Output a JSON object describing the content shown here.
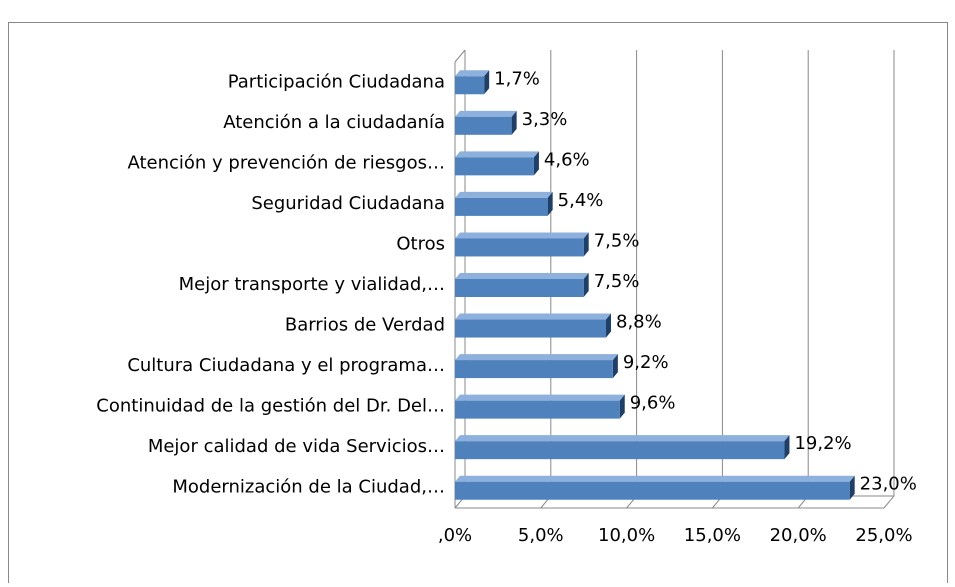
{
  "chart_data": {
    "type": "bar",
    "orientation": "horizontal",
    "categories": [
      "Participación Ciudadana",
      "Atención a la ciudadanía",
      "Atención y prevención de riesgos…",
      "Seguridad Ciudadana",
      "Otros",
      "Mejor transporte y vialidad,…",
      "Barrios de Verdad",
      "Cultura Ciudadana y  el programa…",
      "Continuidad de la gestión del Dr. Del…",
      "Mejor calidad de vida  Servicios…",
      "Modernización de la Ciudad,…"
    ],
    "values": [
      1.7,
      3.3,
      4.6,
      5.4,
      7.5,
      7.5,
      8.8,
      9.2,
      9.6,
      19.2,
      23.0
    ],
    "value_labels": [
      "1,7%",
      "3,3%",
      "4,6%",
      "5,4%",
      "7,5%",
      "7,5%",
      "8,8%",
      "9,2%",
      "9,6%",
      "19,2%",
      "23,0%"
    ],
    "color": "#4f81bd",
    "xlim": [
      0,
      25
    ],
    "xticks": [
      {
        "value": 0,
        "label": ",0%"
      },
      {
        "value": 5,
        "label": "5,0%"
      },
      {
        "value": 10,
        "label": "10,0%"
      },
      {
        "value": 15,
        "label": "15,0%"
      },
      {
        "value": 20,
        "label": "20,0%"
      },
      {
        "value": 25,
        "label": "25,0%"
      }
    ],
    "grid": true
  }
}
